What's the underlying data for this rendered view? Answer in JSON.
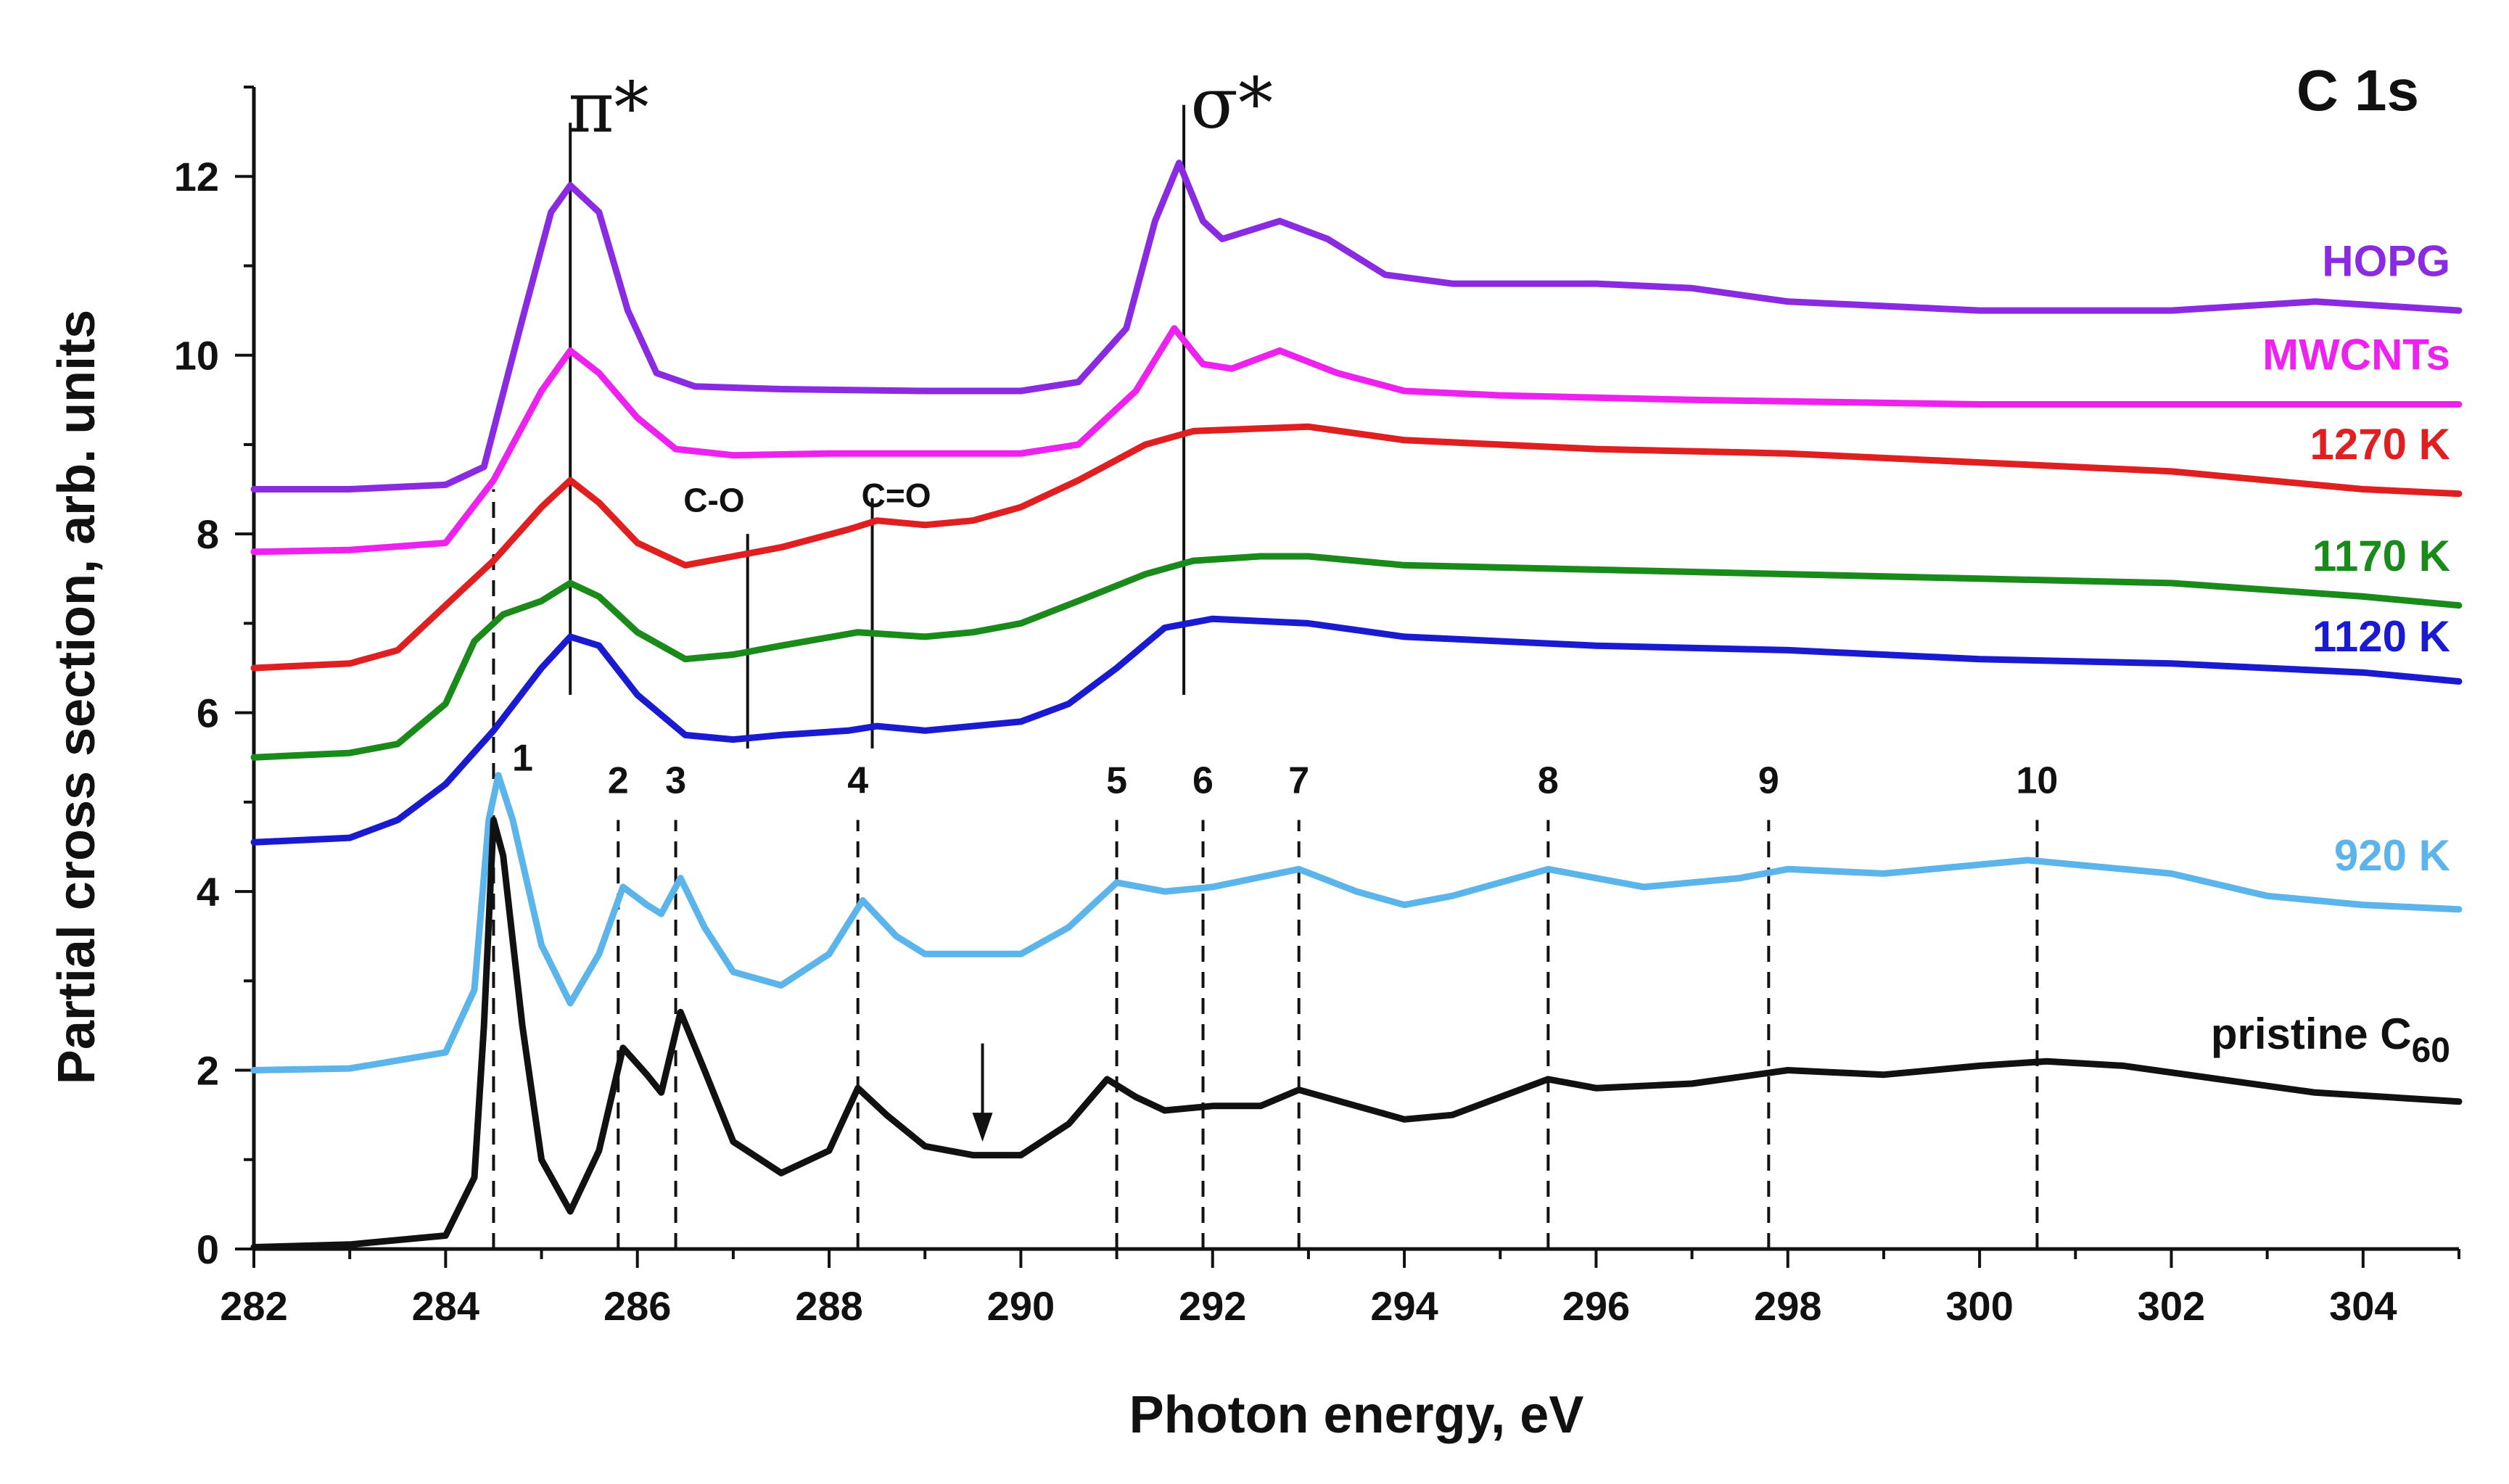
{
  "chart_data": {
    "type": "line",
    "title": "C 1s",
    "xlabel": "Photon energy, eV",
    "ylabel": "Partial cross section, arb. units",
    "xlim": [
      282,
      305
    ],
    "ylim": [
      0,
      13
    ],
    "x_ticks": [
      "282",
      "284",
      "286",
      "288",
      "290",
      "292",
      "294",
      "296",
      "298",
      "300",
      "302",
      "304"
    ],
    "y_ticks": [
      "0",
      "2",
      "4",
      "6",
      "8",
      "10",
      "12"
    ],
    "series": [
      {
        "name": "HOPG",
        "color": "#8a2be2",
        "points": [
          [
            282,
            8.5
          ],
          [
            283,
            8.5
          ],
          [
            284,
            8.55
          ],
          [
            284.4,
            8.75
          ],
          [
            284.8,
            10.4
          ],
          [
            285.1,
            11.6
          ],
          [
            285.3,
            11.9
          ],
          [
            285.6,
            11.6
          ],
          [
            285.9,
            10.5
          ],
          [
            286.2,
            9.8
          ],
          [
            286.6,
            9.65
          ],
          [
            287.5,
            9.62
          ],
          [
            289,
            9.6
          ],
          [
            290,
            9.6
          ],
          [
            290.6,
            9.7
          ],
          [
            291.1,
            10.3
          ],
          [
            291.4,
            11.5
          ],
          [
            291.65,
            12.15
          ],
          [
            291.9,
            11.5
          ],
          [
            292.1,
            11.3
          ],
          [
            292.7,
            11.5
          ],
          [
            293.2,
            11.3
          ],
          [
            293.8,
            10.9
          ],
          [
            294.5,
            10.8
          ],
          [
            296,
            10.8
          ],
          [
            297,
            10.75
          ],
          [
            298,
            10.6
          ],
          [
            300,
            10.5
          ],
          [
            302,
            10.5
          ],
          [
            303.5,
            10.6
          ],
          [
            305,
            10.5
          ]
        ]
      },
      {
        "name": "MWCNTs",
        "color": "#ee22ee",
        "points": [
          [
            282,
            7.8
          ],
          [
            283,
            7.82
          ],
          [
            284,
            7.9
          ],
          [
            284.5,
            8.6
          ],
          [
            285,
            9.6
          ],
          [
            285.3,
            10.05
          ],
          [
            285.6,
            9.8
          ],
          [
            286,
            9.3
          ],
          [
            286.4,
            8.95
          ],
          [
            287,
            8.88
          ],
          [
            288,
            8.9
          ],
          [
            289,
            8.9
          ],
          [
            290,
            8.9
          ],
          [
            290.6,
            9.0
          ],
          [
            291.2,
            9.6
          ],
          [
            291.6,
            10.3
          ],
          [
            291.9,
            9.9
          ],
          [
            292.2,
            9.85
          ],
          [
            292.7,
            10.05
          ],
          [
            293.3,
            9.8
          ],
          [
            294,
            9.6
          ],
          [
            295,
            9.55
          ],
          [
            297,
            9.5
          ],
          [
            300,
            9.45
          ],
          [
            303,
            9.45
          ],
          [
            305,
            9.45
          ]
        ]
      },
      {
        "name": "1270 K",
        "color": "#e02020",
        "points": [
          [
            282,
            6.5
          ],
          [
            283,
            6.55
          ],
          [
            283.5,
            6.7
          ],
          [
            284,
            7.2
          ],
          [
            284.5,
            7.7
          ],
          [
            285,
            8.3
          ],
          [
            285.3,
            8.6
          ],
          [
            285.6,
            8.35
          ],
          [
            286,
            7.9
          ],
          [
            286.5,
            7.65
          ],
          [
            287,
            7.75
          ],
          [
            287.5,
            7.85
          ],
          [
            288.2,
            8.05
          ],
          [
            288.5,
            8.15
          ],
          [
            289,
            8.1
          ],
          [
            289.5,
            8.15
          ],
          [
            290,
            8.3
          ],
          [
            290.6,
            8.6
          ],
          [
            291.3,
            9.0
          ],
          [
            291.8,
            9.15
          ],
          [
            292.5,
            9.18
          ],
          [
            293,
            9.2
          ],
          [
            294,
            9.05
          ],
          [
            296,
            8.95
          ],
          [
            298,
            8.9
          ],
          [
            300,
            8.8
          ],
          [
            302,
            8.7
          ],
          [
            304,
            8.5
          ],
          [
            305,
            8.45
          ]
        ]
      },
      {
        "name": "1170 K",
        "color": "#1a8a1a",
        "points": [
          [
            282,
            5.5
          ],
          [
            283,
            5.55
          ],
          [
            283.5,
            5.65
          ],
          [
            284,
            6.1
          ],
          [
            284.3,
            6.8
          ],
          [
            284.6,
            7.1
          ],
          [
            285,
            7.25
          ],
          [
            285.3,
            7.45
          ],
          [
            285.6,
            7.3
          ],
          [
            286,
            6.9
          ],
          [
            286.5,
            6.6
          ],
          [
            287,
            6.65
          ],
          [
            287.5,
            6.75
          ],
          [
            288.3,
            6.9
          ],
          [
            289,
            6.85
          ],
          [
            289.5,
            6.9
          ],
          [
            290,
            7.0
          ],
          [
            290.6,
            7.25
          ],
          [
            291.3,
            7.55
          ],
          [
            291.8,
            7.7
          ],
          [
            292.5,
            7.75
          ],
          [
            293,
            7.75
          ],
          [
            294,
            7.65
          ],
          [
            296,
            7.6
          ],
          [
            298,
            7.55
          ],
          [
            300,
            7.5
          ],
          [
            302,
            7.45
          ],
          [
            304,
            7.3
          ],
          [
            305,
            7.2
          ]
        ]
      },
      {
        "name": "1120 K",
        "color": "#1a1ad0",
        "points": [
          [
            282,
            4.55
          ],
          [
            283,
            4.6
          ],
          [
            283.5,
            4.8
          ],
          [
            284,
            5.2
          ],
          [
            284.5,
            5.8
          ],
          [
            285,
            6.5
          ],
          [
            285.3,
            6.85
          ],
          [
            285.6,
            6.75
          ],
          [
            286,
            6.2
          ],
          [
            286.5,
            5.75
          ],
          [
            287,
            5.7
          ],
          [
            287.5,
            5.75
          ],
          [
            288.2,
            5.8
          ],
          [
            288.5,
            5.85
          ],
          [
            289,
            5.8
          ],
          [
            290,
            5.9
          ],
          [
            290.5,
            6.1
          ],
          [
            291,
            6.5
          ],
          [
            291.5,
            6.95
          ],
          [
            292,
            7.05
          ],
          [
            293,
            7.0
          ],
          [
            294,
            6.85
          ],
          [
            296,
            6.75
          ],
          [
            298,
            6.7
          ],
          [
            300,
            6.6
          ],
          [
            302,
            6.55
          ],
          [
            304,
            6.45
          ],
          [
            305,
            6.35
          ]
        ]
      },
      {
        "name": "920 K",
        "color": "#5bb4ea",
        "points": [
          [
            282,
            2.0
          ],
          [
            283,
            2.02
          ],
          [
            284,
            2.2
          ],
          [
            284.3,
            2.9
          ],
          [
            284.45,
            4.8
          ],
          [
            284.55,
            5.3
          ],
          [
            284.7,
            4.8
          ],
          [
            285,
            3.4
          ],
          [
            285.3,
            2.75
          ],
          [
            285.6,
            3.3
          ],
          [
            285.85,
            4.05
          ],
          [
            286.1,
            3.85
          ],
          [
            286.25,
            3.75
          ],
          [
            286.45,
            4.15
          ],
          [
            286.7,
            3.6
          ],
          [
            287,
            3.1
          ],
          [
            287.5,
            2.95
          ],
          [
            288,
            3.3
          ],
          [
            288.35,
            3.9
          ],
          [
            288.7,
            3.5
          ],
          [
            289,
            3.3
          ],
          [
            290,
            3.3
          ],
          [
            290.5,
            3.6
          ],
          [
            290.7,
            3.8
          ],
          [
            291,
            4.1
          ],
          [
            291.5,
            4.0
          ],
          [
            292,
            4.05
          ],
          [
            292.9,
            4.25
          ],
          [
            293.5,
            4.0
          ],
          [
            294,
            3.85
          ],
          [
            294.5,
            3.95
          ],
          [
            295.5,
            4.25
          ],
          [
            296.5,
            4.05
          ],
          [
            297.5,
            4.15
          ],
          [
            298,
            4.25
          ],
          [
            299,
            4.2
          ],
          [
            300,
            4.3
          ],
          [
            300.5,
            4.35
          ],
          [
            301,
            4.3
          ],
          [
            302,
            4.2
          ],
          [
            303,
            3.95
          ],
          [
            304,
            3.85
          ],
          [
            305,
            3.8
          ]
        ]
      },
      {
        "name": "pristine C60",
        "color": "#111111",
        "points": [
          [
            282,
            0.02
          ],
          [
            283,
            0.05
          ],
          [
            284,
            0.15
          ],
          [
            284.3,
            0.8
          ],
          [
            284.4,
            2.5
          ],
          [
            284.5,
            4.8
          ],
          [
            284.6,
            4.4
          ],
          [
            284.8,
            2.5
          ],
          [
            285,
            1.0
          ],
          [
            285.3,
            0.42
          ],
          [
            285.6,
            1.1
          ],
          [
            285.85,
            2.25
          ],
          [
            286.1,
            1.95
          ],
          [
            286.25,
            1.75
          ],
          [
            286.45,
            2.65
          ],
          [
            286.7,
            2.0
          ],
          [
            287,
            1.2
          ],
          [
            287.5,
            0.85
          ],
          [
            288,
            1.1
          ],
          [
            288.3,
            1.8
          ],
          [
            288.6,
            1.5
          ],
          [
            289,
            1.15
          ],
          [
            289.5,
            1.05
          ],
          [
            290,
            1.05
          ],
          [
            290.5,
            1.4
          ],
          [
            290.9,
            1.9
          ],
          [
            291.2,
            1.7
          ],
          [
            291.5,
            1.55
          ],
          [
            292,
            1.6
          ],
          [
            292.5,
            1.6
          ],
          [
            292.9,
            1.78
          ],
          [
            293.5,
            1.6
          ],
          [
            294,
            1.45
          ],
          [
            294.5,
            1.5
          ],
          [
            295,
            1.7
          ],
          [
            295.5,
            1.9
          ],
          [
            296,
            1.8
          ],
          [
            297,
            1.85
          ],
          [
            298,
            2.0
          ],
          [
            299,
            1.95
          ],
          [
            300,
            2.05
          ],
          [
            300.7,
            2.1
          ],
          [
            301.5,
            2.05
          ],
          [
            302.5,
            1.9
          ],
          [
            303.5,
            1.75
          ],
          [
            305,
            1.65
          ]
        ]
      }
    ],
    "series_label_y": {
      "HOPG": 11.05,
      "MWCNTs": 10.0,
      "1270 K": 9.0,
      "1170 K": 7.75,
      "1120 K": 6.85,
      "920 K": 4.4,
      "pristine C60": 2.4
    },
    "solid_lines": [
      {
        "x": 285.3,
        "y_from": 6.2,
        "y_to": 12.6
      },
      {
        "x": 291.7,
        "y_from": 6.2,
        "y_to": 12.8
      },
      {
        "x": 287.15,
        "y_from": 5.6,
        "y_to": 8.0
      },
      {
        "x": 288.45,
        "y_from": 5.6,
        "y_to": 8.4
      }
    ],
    "peak_lines": [
      {
        "label": "1",
        "x": 284.5,
        "y_from": 0,
        "y_to": 8.5
      },
      {
        "label": "2",
        "x": 285.8,
        "y_from": 0,
        "y_to": 4.8
      },
      {
        "label": "3",
        "x": 286.4,
        "y_from": 0,
        "y_to": 4.8
      },
      {
        "label": "4",
        "x": 288.3,
        "y_from": 0,
        "y_to": 4.8
      },
      {
        "label": "5",
        "x": 291.0,
        "y_from": 0,
        "y_to": 4.8
      },
      {
        "label": "6",
        "x": 291.9,
        "y_from": 0,
        "y_to": 4.8
      },
      {
        "label": "7",
        "x": 292.9,
        "y_from": 0,
        "y_to": 4.8
      },
      {
        "label": "8",
        "x": 295.5,
        "y_from": 0,
        "y_to": 4.8
      },
      {
        "label": "9",
        "x": 297.8,
        "y_from": 0,
        "y_to": 4.8
      },
      {
        "label": "10",
        "x": 300.6,
        "y_from": 0,
        "y_to": 4.8
      }
    ],
    "annotations": {
      "pi_star": {
        "text": "π*",
        "x": 285.7,
        "y": 12.5
      },
      "sigma_star": {
        "text": "σ*",
        "x": 292.2,
        "y": 12.55
      },
      "c_o": {
        "text": "C-O",
        "x": 286.8,
        "y": 8.25
      },
      "c_eq_o": {
        "text": "C=O",
        "x": 288.7,
        "y": 8.3
      },
      "arrow": {
        "x": 289.6,
        "y_from": 2.3,
        "y_to": 1.2
      }
    }
  }
}
